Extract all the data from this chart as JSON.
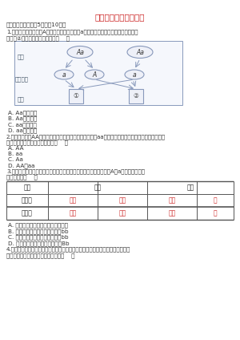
{
  "title": "《基因的显性和隐性》",
  "section1": "一、单项选择题（共5题，內10分）",
  "q1_line1": "1.已知有耳由显性基因A控制，无耳由隐性基因a控制，在下图所示基因的传递过程示",
  "q1_line2": "意中，②的基因组成情况分别是（    ）",
  "q1_opts": [
    "A. Aa，有耳多",
    "B. Aa，无耳多",
    "C. aa，有耳多",
    "D. aa，无耳多"
  ],
  "q2_line1": "2.若基因组成为AA的水蛱杆作为母株，让其与基因组成为aa的水蛱杆嵁接在一起。该杆作为母株与雄",
  "q2_line2": "株交配后获得的基因组成应该是（    ）",
  "q2_opts": [
    "A. AA",
    "B. aa",
    "C. Aa",
    "D. AA和aa"
  ],
  "q3_line1": "3.番茄的果色有红色和黄色之分，下表为某亲本交配的结果（基因用A、a表示），下列分",
  "q3_line2": "析正确的是（    ）",
  "table_row1": [
    "第一组",
    "红果",
    "黄果",
    "黄果",
    "红"
  ],
  "table_row2": [
    "第二组",
    "黄果",
    "黄果",
    "黄果",
    "红"
  ],
  "q3_opts": [
    "A. 番茄的红色和黄色是一对相对性状",
    "B. 第二组子代黄果的基因组成为bb",
    "C. 第一组子代红果的基因组成为bb",
    "D. 第二组子代黄果的基因组成为Bb"
  ],
  "q4_line1": "4.某水池的甲鱼由白色和黑色组成，已知白色基因为显性基因，在基因组成不发生",
  "q4_line2": "变化的情况下，下列判断不正确的是（    ）",
  "bg_color": "#ffffff",
  "title_color": "#cc2222",
  "text_color": "#333333",
  "red_color": "#cc2222",
  "tbl_header_color": "#333333",
  "tbl_border_color": "#555555",
  "diagram_edge_color": "#8899bb",
  "diagram_fill_color": "#eef0f8",
  "diagram_box_bg": "#f5f7fc",
  "label_color": "#445566"
}
